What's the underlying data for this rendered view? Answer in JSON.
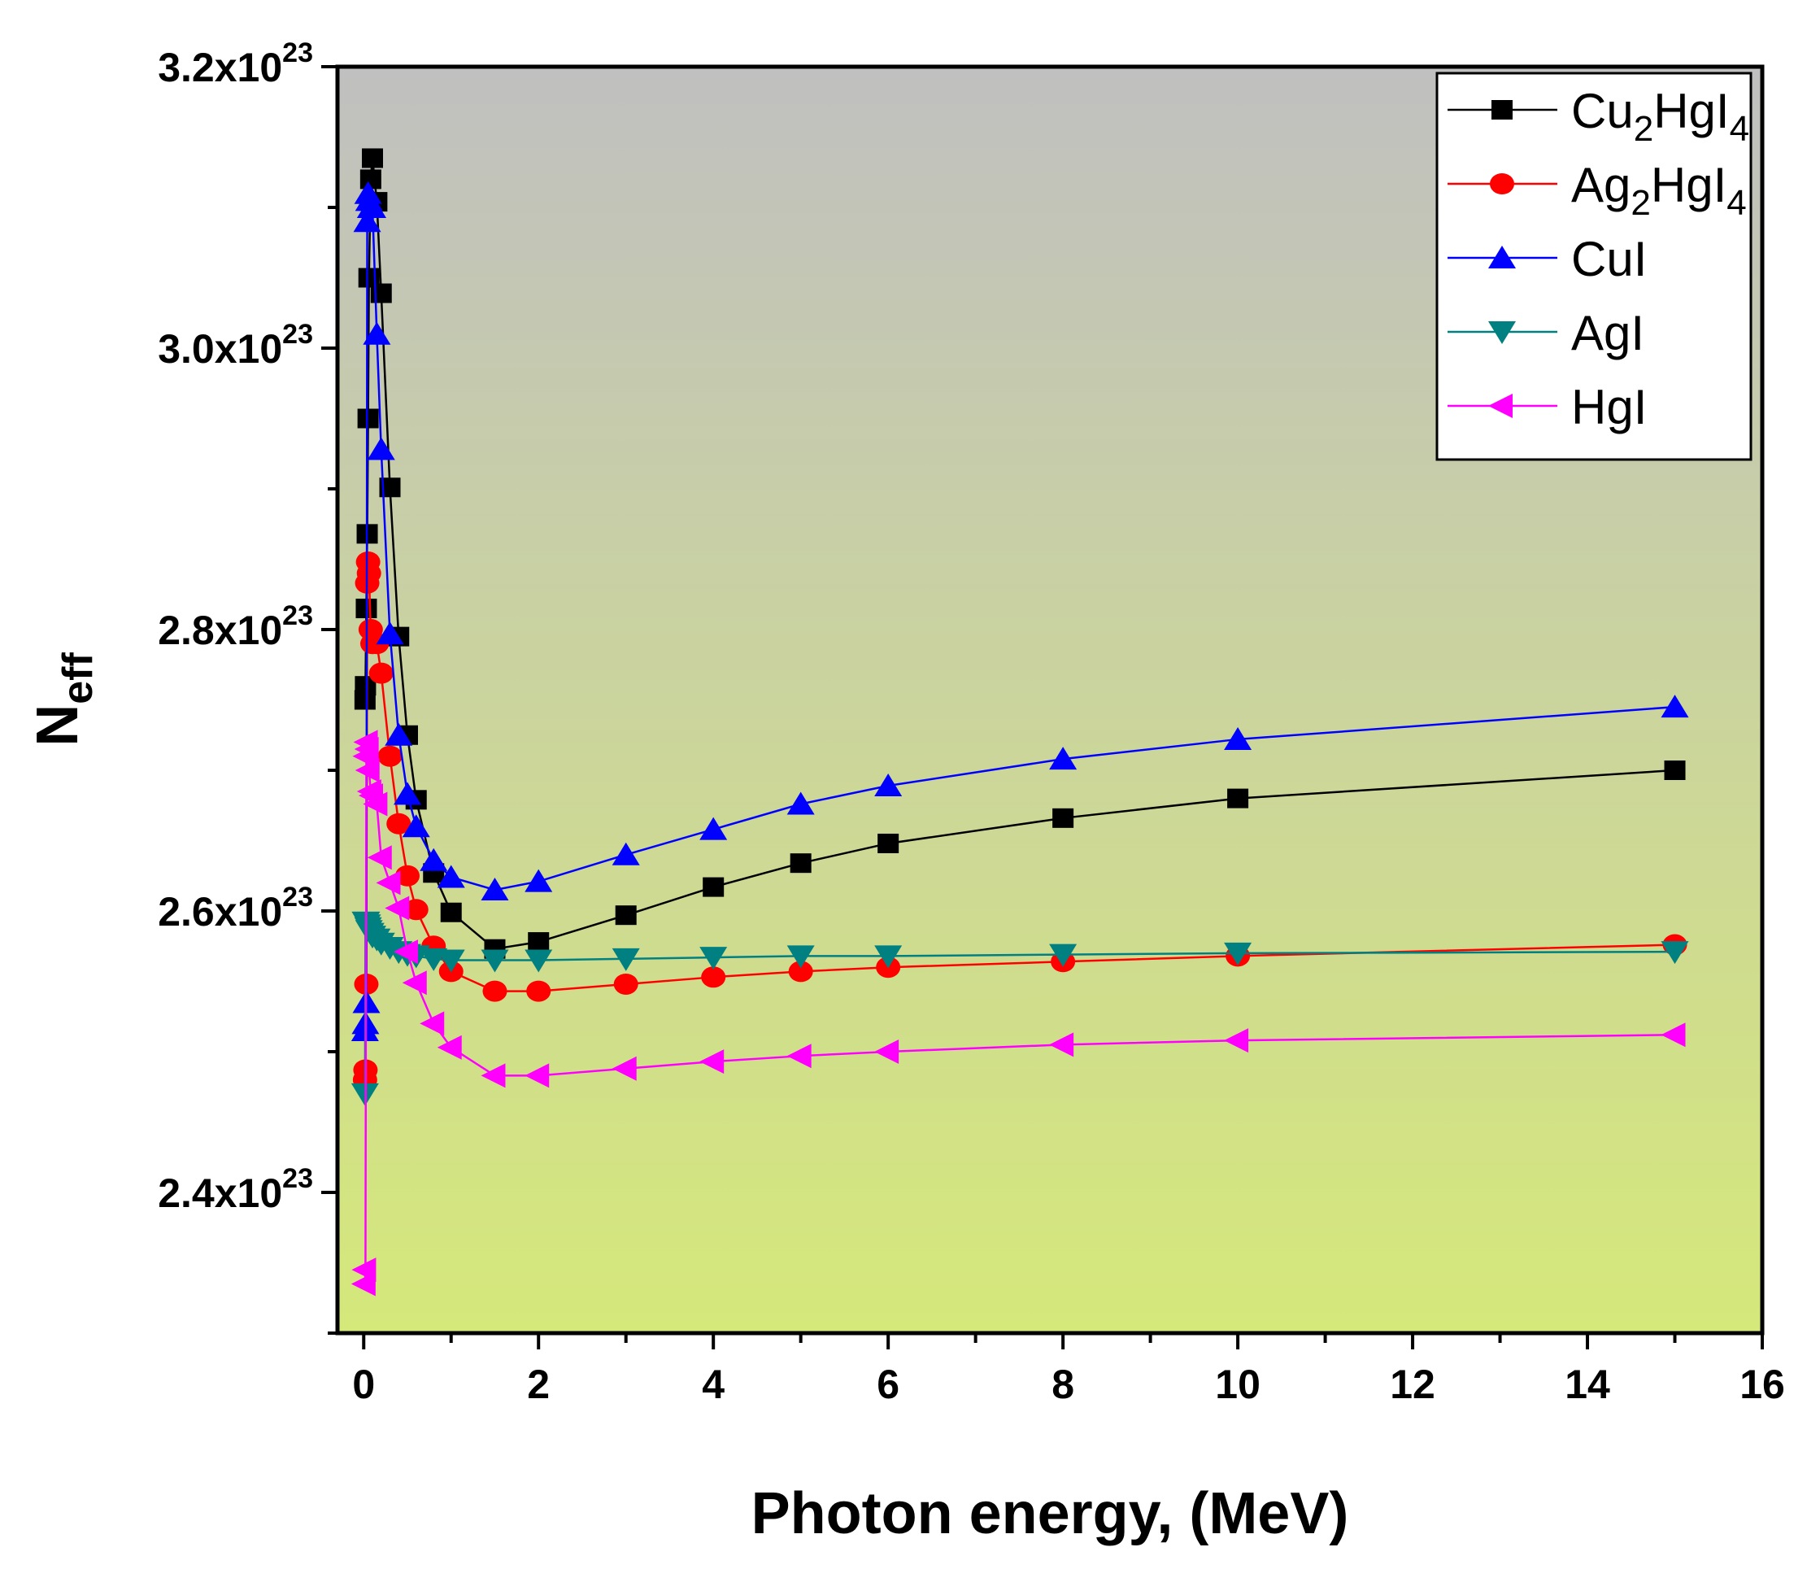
{
  "chart_data": {
    "type": "line",
    "title": "",
    "xlabel": "Photon energy, (MeV)",
    "ylabel_main": "N",
    "ylabel_sub": "eff",
    "xlim": [
      -0.3,
      16
    ],
    "ylim": [
      2.3,
      3.2
    ],
    "y_multiplier_label": "x10",
    "y_exponent": "23",
    "x_ticks": [
      0,
      2,
      4,
      6,
      8,
      10,
      12,
      14,
      16
    ],
    "x_tick_labels": [
      "0",
      "2",
      "4",
      "6",
      "8",
      "10",
      "12",
      "14",
      "16"
    ],
    "y_ticks": [
      2.4,
      2.6,
      2.8,
      3.0,
      3.2
    ],
    "y_tick_labels": [
      "2.4",
      "2.6",
      "2.8",
      "3.0",
      "3.2"
    ],
    "legend_position": "top-right",
    "background_gradient": [
      "#c0c0c0",
      "#d5e87a"
    ],
    "x": [
      0.015,
      0.02,
      0.03,
      0.04,
      0.05,
      0.06,
      0.08,
      0.1,
      0.15,
      0.2,
      0.3,
      0.4,
      0.5,
      0.6,
      0.8,
      1,
      1.5,
      2,
      3,
      4,
      5,
      6,
      8,
      10,
      15
    ],
    "series": [
      {
        "name": "Cu2HgI4",
        "label_main": "Cu",
        "label_parts": [
          [
            "Cu",
            ""
          ],
          [
            "2",
            "sub"
          ],
          [
            "HgI",
            ""
          ],
          [
            "4",
            "sub"
          ]
        ],
        "color": "#000000",
        "marker": "square",
        "values": [
          2.75,
          2.76,
          2.815,
          2.868,
          2.95,
          3.05,
          3.12,
          3.135,
          3.104,
          3.039,
          2.901,
          2.795,
          2.725,
          2.679,
          2.627,
          2.599,
          2.573,
          2.578,
          2.597,
          2.617,
          2.634,
          2.648,
          2.666,
          2.68,
          2.7
        ]
      },
      {
        "name": "Ag2HgI4",
        "label_parts": [
          [
            "Ag",
            ""
          ],
          [
            "2",
            "sub"
          ],
          [
            "HgI",
            ""
          ],
          [
            "4",
            "sub"
          ]
        ],
        "color": "#ff0000",
        "marker": "circle",
        "values": [
          2.48,
          2.487,
          2.548,
          2.833,
          2.848,
          2.84,
          2.8,
          2.79,
          2.79,
          2.769,
          2.71,
          2.662,
          2.625,
          2.601,
          2.575,
          2.557,
          2.543,
          2.543,
          2.548,
          2.553,
          2.557,
          2.56,
          2.564,
          2.568,
          2.576
        ]
      },
      {
        "name": "CuI",
        "label_parts": [
          [
            "CuI",
            ""
          ]
        ],
        "color": "#0000ff",
        "marker": "triangle-up",
        "values": [
          2.515,
          2.52,
          2.535,
          3.09,
          3.11,
          3.105,
          3.1,
          3.1,
          3.01,
          2.928,
          2.797,
          2.725,
          2.683,
          2.66,
          2.636,
          2.624,
          2.615,
          2.621,
          2.64,
          2.658,
          2.676,
          2.689,
          2.708,
          2.722,
          2.745
        ]
      },
      {
        "name": "AgI",
        "label_parts": [
          [
            "AgI",
            ""
          ]
        ],
        "color": "#008080",
        "marker": "triangle-down",
        "values": [
          2.47,
          2.592,
          2.592,
          2.59,
          2.588,
          2.586,
          2.584,
          2.582,
          2.58,
          2.577,
          2.574,
          2.571,
          2.569,
          2.568,
          2.566,
          2.565,
          2.565,
          2.565,
          2.566,
          2.567,
          2.568,
          2.568,
          2.569,
          2.57,
          2.571
        ]
      },
      {
        "name": "HgI",
        "label_parts": [
          [
            "HgI",
            ""
          ]
        ],
        "color": "#ff00ff",
        "marker": "triangle-left",
        "values": [
          2.335,
          2.345,
          2.71,
          2.72,
          2.715,
          2.7,
          2.685,
          2.682,
          2.676,
          2.638,
          2.62,
          2.602,
          2.571,
          2.549,
          2.52,
          2.503,
          2.483,
          2.483,
          2.488,
          2.493,
          2.497,
          2.5,
          2.505,
          2.508,
          2.512
        ]
      }
    ]
  }
}
